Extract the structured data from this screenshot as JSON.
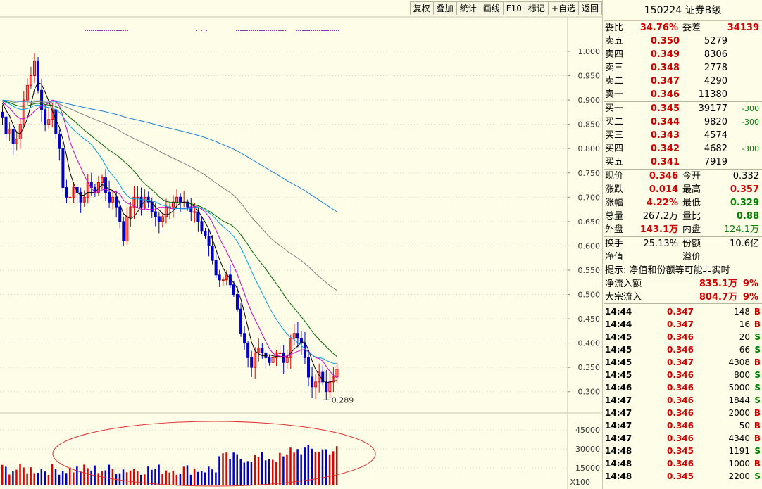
{
  "toolbar": {
    "buttons": [
      "复权",
      "叠加",
      "统计",
      "画线",
      "F10",
      "标记",
      "+自选",
      "返回"
    ]
  },
  "chart": {
    "y_ticks": [
      "1.000",
      "0.950",
      "0.900",
      "0.850",
      "0.800",
      "0.750",
      "0.700",
      "0.650",
      "0.600",
      "0.550",
      "0.500",
      "0.450",
      "0.400",
      "0.350",
      "0.300"
    ],
    "low_marker": "0.289",
    "vol_ticks": [
      "45000",
      "30000",
      "15000"
    ],
    "vol_unit": "X100",
    "colors": {
      "up": "#e00000",
      "down": "#0000cc",
      "ma5": "#000000",
      "ma10": "#cc00cc",
      "ma20": "#00a0e0",
      "ma30": "#006600",
      "ma60": "#808080",
      "ma120": "#1e7fd8",
      "ellipse": "#e03030"
    }
  },
  "chart_data": {
    "type": "candlestick",
    "y_range": [
      0.28,
      1.03
    ],
    "candles_close": [
      0.865,
      0.83,
      0.84,
      0.81,
      0.82,
      0.85,
      0.9,
      0.93,
      0.95,
      0.98,
      0.92,
      0.88,
      0.85,
      0.86,
      0.88,
      0.83,
      0.8,
      0.72,
      0.7,
      0.7,
      0.72,
      0.71,
      0.69,
      0.7,
      0.73,
      0.72,
      0.71,
      0.73,
      0.74,
      0.71,
      0.69,
      0.7,
      0.68,
      0.65,
      0.61,
      0.66,
      0.68,
      0.7,
      0.7,
      0.68,
      0.7,
      0.69,
      0.67,
      0.66,
      0.65,
      0.66,
      0.68,
      0.68,
      0.69,
      0.7,
      0.69,
      0.69,
      0.68,
      0.67,
      0.67,
      0.65,
      0.63,
      0.62,
      0.6,
      0.57,
      0.54,
      0.53,
      0.53,
      0.54,
      0.52,
      0.5,
      0.47,
      0.42,
      0.4,
      0.37,
      0.35,
      0.38,
      0.39,
      0.38,
      0.37,
      0.36,
      0.37,
      0.38,
      0.38,
      0.36,
      0.37,
      0.41,
      0.42,
      0.41,
      0.4,
      0.37,
      0.33,
      0.31,
      0.32,
      0.34,
      0.32,
      0.3,
      0.32,
      0.33,
      0.346
    ],
    "low": 0.289
  },
  "quote": {
    "title": "150224 证券B级",
    "weibi_label": "委比",
    "weibi_value": "34.76%",
    "weicha_label": "委差",
    "weicha_value": "34139",
    "asks": [
      {
        "label": "卖五",
        "price": "0.350",
        "vol": "5279"
      },
      {
        "label": "卖四",
        "price": "0.349",
        "vol": "8306"
      },
      {
        "label": "卖三",
        "price": "0.348",
        "vol": "2778"
      },
      {
        "label": "卖二",
        "price": "0.347",
        "vol": "4290"
      },
      {
        "label": "卖一",
        "price": "0.346",
        "vol": "11380"
      }
    ],
    "bids": [
      {
        "label": "买一",
        "price": "0.345",
        "vol": "39177",
        "chg": "-300"
      },
      {
        "label": "买二",
        "price": "0.344",
        "vol": "9820",
        "chg": "-300"
      },
      {
        "label": "买三",
        "price": "0.343",
        "vol": "4574",
        "chg": ""
      },
      {
        "label": "买四",
        "price": "0.342",
        "vol": "4682",
        "chg": "-300"
      },
      {
        "label": "买五",
        "price": "0.341",
        "vol": "7919",
        "chg": ""
      }
    ],
    "stats": [
      {
        "l1": "现价",
        "v1": "0.346",
        "c1": "red",
        "l2": "今开",
        "v2": "0.332",
        "c2": ""
      },
      {
        "l1": "涨跌",
        "v1": "0.014",
        "c1": "red",
        "l2": "最高",
        "v2": "0.357",
        "c2": "red"
      },
      {
        "l1": "涨幅",
        "v1": "4.22%",
        "c1": "red",
        "l2": "最低",
        "v2": "0.329",
        "c2": "grn-b"
      },
      {
        "l1": "总量",
        "v1": "267.2万",
        "c1": "",
        "l2": "量比",
        "v2": "0.88",
        "c2": "grn-b"
      },
      {
        "l1": "外盘",
        "v1": "143.1万",
        "c1": "red",
        "l2": "内盘",
        "v2": "124.1万",
        "c2": "green"
      }
    ],
    "turnover_label": "换手",
    "turnover": "25.13%",
    "shares_label": "份额",
    "shares": "10.6亿",
    "nav_label": "净值",
    "premium_label": "溢价",
    "notice": "提示: 净值和份额等可能非实时",
    "netflow_label": "净流入额",
    "netflow": "835.1万",
    "netflow_pct": "9%",
    "block_label": "大宗流入",
    "block": "804.7万",
    "block_pct": "9%"
  },
  "ticks": [
    {
      "time": "14:44",
      "price": "0.347",
      "vol": "148",
      "bs": "B"
    },
    {
      "time": "14:44",
      "price": "0.347",
      "vol": "16",
      "bs": "B"
    },
    {
      "time": "14:45",
      "price": "0.346",
      "vol": "20",
      "bs": "S"
    },
    {
      "time": "14:45",
      "price": "0.346",
      "vol": "66",
      "bs": "S"
    },
    {
      "time": "14:45",
      "price": "0.347",
      "vol": "4308",
      "bs": "B"
    },
    {
      "time": "14:45",
      "price": "0.346",
      "vol": "800",
      "bs": "S"
    },
    {
      "time": "14:46",
      "price": "0.346",
      "vol": "5000",
      "bs": "S"
    },
    {
      "time": "14:47",
      "price": "0.346",
      "vol": "1844",
      "bs": "S"
    },
    {
      "time": "14:47",
      "price": "0.346",
      "vol": "2000",
      "bs": "B"
    },
    {
      "time": "14:47",
      "price": "0.346",
      "vol": "50",
      "bs": "B"
    },
    {
      "time": "14:47",
      "price": "0.346",
      "vol": "4340",
      "bs": "B"
    },
    {
      "time": "14:48",
      "price": "0.345",
      "vol": "1191",
      "bs": "S"
    },
    {
      "time": "14:48",
      "price": "0.346",
      "vol": "1000",
      "bs": "B"
    },
    {
      "time": "14:48",
      "price": "0.345",
      "vol": "2200",
      "bs": "S"
    }
  ]
}
